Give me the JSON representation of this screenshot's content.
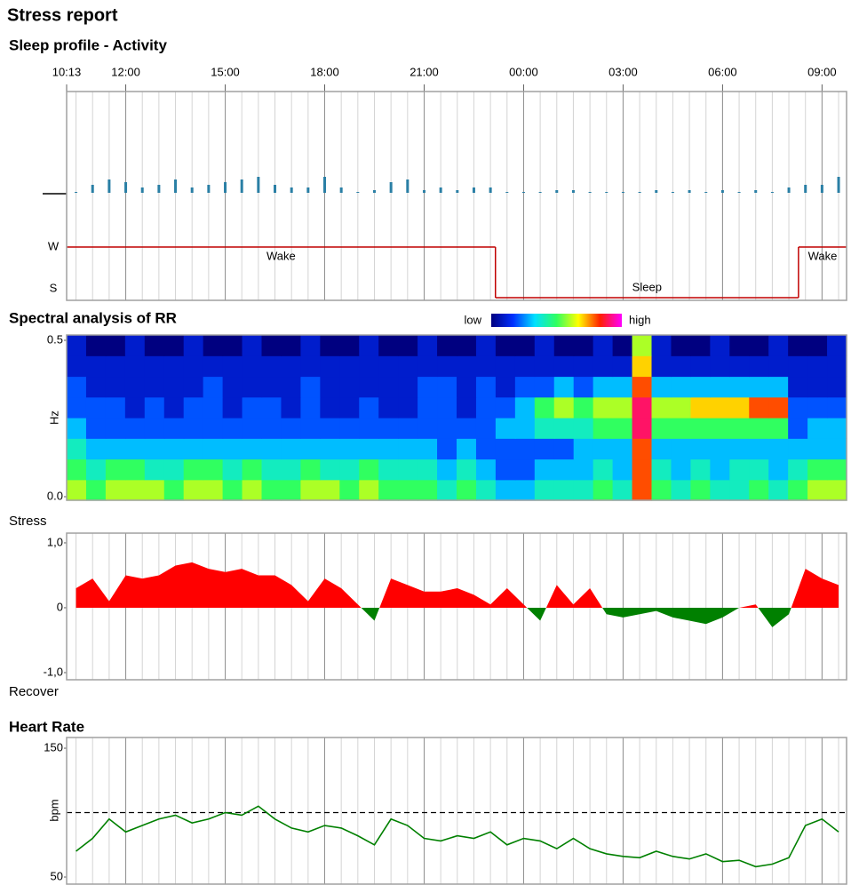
{
  "title": "Stress report",
  "chart_data": [
    {
      "type": "activity",
      "title": "Sleep profile - Activity",
      "xlim": [
        10.217,
        33.74
      ],
      "xticks": [
        {
          "value": 10.217,
          "label": "10:13"
        },
        {
          "value": 12,
          "label": "12:00"
        },
        {
          "value": 15,
          "label": "15:00"
        },
        {
          "value": 18,
          "label": "18:00"
        },
        {
          "value": 21,
          "label": "21:00"
        },
        {
          "value": 24,
          "label": "00:00"
        },
        {
          "value": 27,
          "label": "03:00"
        },
        {
          "value": 30,
          "label": "06:00"
        },
        {
          "value": 33,
          "label": "09:00"
        }
      ],
      "x": [
        10.5,
        11,
        11.5,
        12,
        12.5,
        13,
        13.5,
        14,
        14.5,
        15,
        15.5,
        16,
        16.5,
        17,
        17.5,
        18,
        18.5,
        19,
        19.5,
        20,
        20.5,
        21,
        21.5,
        22,
        22.5,
        23,
        23.5,
        24,
        24.5,
        25,
        25.5,
        26,
        26.5,
        27,
        27.5,
        28,
        28.5,
        29,
        29.5,
        30,
        30.5,
        31,
        31.5,
        32,
        32.5,
        33,
        33.5
      ],
      "values": [
        0,
        3,
        5,
        4,
        2,
        3,
        5,
        2,
        3,
        4,
        5,
        6,
        3,
        2,
        2,
        6,
        2,
        0,
        1,
        4,
        5,
        1,
        2,
        1,
        2,
        2,
        0,
        0,
        0,
        1,
        1,
        0,
        0,
        0,
        0,
        1,
        0,
        1,
        0,
        1,
        0,
        1,
        0,
        2,
        3,
        3,
        6
      ],
      "ylim": [
        0,
        10
      ],
      "color": "#2a7fa5",
      "hypnogram": {
        "levels": [
          "W",
          "S"
        ],
        "color": "#c00000",
        "segments": [
          {
            "label": "Wake",
            "start": 10.217,
            "end": 23.15,
            "level": 0
          },
          {
            "label": "Sleep",
            "start": 23.15,
            "end": 32.29,
            "level": 1
          },
          {
            "label": "Wake",
            "start": 32.29,
            "end": 33.74,
            "level": 0
          }
        ]
      }
    },
    {
      "type": "spectrogram",
      "title": "Spectral analysis of RR",
      "ylabel": "Hz",
      "xlim": [
        10.217,
        33.74
      ],
      "ylim": [
        0,
        0.5
      ],
      "yticks": [
        {
          "value": 0,
          "label": "0.0"
        },
        0.5
      ],
      "colorbar_labels": [
        "low",
        "high"
      ],
      "colormap": [
        "#000080",
        "#0030ff",
        "#00e0ff",
        "#30ff60",
        "#ffff00",
        "#ff2000",
        "#ff00ff"
      ],
      "z": [
        [
          0.6,
          0.5,
          0.6,
          0.6,
          0.6,
          0.5,
          0.6,
          0.6,
          0.5,
          0.6,
          0.5,
          0.5,
          0.6,
          0.6,
          0.5,
          0.6,
          0.5,
          0.5,
          0.5,
          0.4,
          0.5,
          0.4,
          0.3,
          0.3,
          0.4,
          0.4,
          0.4,
          0.5,
          0.4,
          0.8,
          0.5,
          0.4,
          0.5,
          0.4,
          0.4,
          0.5,
          0.4,
          0.5,
          0.6,
          0.6
        ],
        [
          0.5,
          0.4,
          0.5,
          0.5,
          0.4,
          0.4,
          0.5,
          0.5,
          0.4,
          0.5,
          0.4,
          0.4,
          0.5,
          0.4,
          0.4,
          0.5,
          0.4,
          0.4,
          0.4,
          0.3,
          0.4,
          0.3,
          0.2,
          0.2,
          0.3,
          0.3,
          0.3,
          0.4,
          0.3,
          0.8,
          0.4,
          0.3,
          0.4,
          0.3,
          0.4,
          0.4,
          0.3,
          0.4,
          0.5,
          0.5
        ],
        [
          0.4,
          0.3,
          0.3,
          0.3,
          0.3,
          0.3,
          0.3,
          0.3,
          0.3,
          0.3,
          0.3,
          0.3,
          0.3,
          0.3,
          0.3,
          0.3,
          0.3,
          0.3,
          0.3,
          0.2,
          0.3,
          0.2,
          0.2,
          0.2,
          0.2,
          0.2,
          0.3,
          0.3,
          0.3,
          0.8,
          0.3,
          0.3,
          0.3,
          0.3,
          0.3,
          0.3,
          0.3,
          0.3,
          0.3,
          0.3
        ],
        [
          0.3,
          0.2,
          0.2,
          0.2,
          0.2,
          0.2,
          0.2,
          0.2,
          0.2,
          0.2,
          0.2,
          0.2,
          0.2,
          0.2,
          0.2,
          0.2,
          0.2,
          0.2,
          0.2,
          0.2,
          0.2,
          0.2,
          0.3,
          0.3,
          0.4,
          0.4,
          0.4,
          0.5,
          0.5,
          0.9,
          0.5,
          0.5,
          0.5,
          0.5,
          0.5,
          0.5,
          0.5,
          0.2,
          0.3,
          0.3
        ],
        [
          0.2,
          0.2,
          0.2,
          0.1,
          0.2,
          0.1,
          0.2,
          0.2,
          0.1,
          0.2,
          0.2,
          0.1,
          0.2,
          0.1,
          0.1,
          0.2,
          0.1,
          0.1,
          0.2,
          0.2,
          0.1,
          0.2,
          0.2,
          0.3,
          0.5,
          0.6,
          0.5,
          0.6,
          0.6,
          0.9,
          0.6,
          0.6,
          0.7,
          0.7,
          0.7,
          0.8,
          0.8,
          0.2,
          0.2,
          0.2
        ],
        [
          0.2,
          0.1,
          0.1,
          0.1,
          0.1,
          0.1,
          0.1,
          0.2,
          0.1,
          0.1,
          0.1,
          0.1,
          0.2,
          0.1,
          0.1,
          0.1,
          0.1,
          0.1,
          0.2,
          0.2,
          0.1,
          0.2,
          0.1,
          0.2,
          0.2,
          0.3,
          0.2,
          0.3,
          0.3,
          0.8,
          0.3,
          0.3,
          0.3,
          0.3,
          0.3,
          0.3,
          0.3,
          0.1,
          0.1,
          0.1
        ],
        [
          0.1,
          0.1,
          0.1,
          0.1,
          0.1,
          0.1,
          0.1,
          0.1,
          0.1,
          0.1,
          0.1,
          0.1,
          0.1,
          0.1,
          0.1,
          0.1,
          0.1,
          0.1,
          0.1,
          0.1,
          0.1,
          0.1,
          0.1,
          0.1,
          0.1,
          0.1,
          0.1,
          0.1,
          0.1,
          0.7,
          0.1,
          0.1,
          0.1,
          0.1,
          0.1,
          0.1,
          0.1,
          0.1,
          0.1,
          0.1
        ],
        [
          0.1,
          0,
          0,
          0.1,
          0,
          0,
          0.1,
          0,
          0,
          0.1,
          0,
          0,
          0.1,
          0,
          0,
          0.1,
          0,
          0,
          0.1,
          0,
          0,
          0.1,
          0,
          0,
          0.1,
          0,
          0,
          0.1,
          0,
          0.6,
          0.1,
          0,
          0,
          0.1,
          0,
          0,
          0.1,
          0,
          0,
          0.1
        ]
      ]
    },
    {
      "type": "area",
      "title": "Stress",
      "bottom_label": "Recover",
      "xlim": [
        10.217,
        33.74
      ],
      "ylim": [
        -1.11,
        1.15
      ],
      "yticks": [
        {
          "value": 1,
          "label": "1,0"
        },
        0,
        {
          "value": -1,
          "label": "-1,0"
        }
      ],
      "positive_color": "#ff0000",
      "negative_color": "#008000",
      "x": [
        10.5,
        11,
        11.5,
        12,
        12.5,
        13,
        13.5,
        14,
        14.5,
        15,
        15.5,
        16,
        16.5,
        17,
        17.5,
        18,
        18.5,
        19,
        19.5,
        20,
        20.5,
        21,
        21.5,
        22,
        22.5,
        23,
        23.5,
        24,
        24.5,
        25,
        25.5,
        26,
        26.5,
        27,
        27.5,
        28,
        28.5,
        29,
        29.5,
        30,
        30.5,
        31,
        31.5,
        32,
        32.5,
        33,
        33.5
      ],
      "values": [
        0.3,
        0.45,
        0.1,
        0.5,
        0.45,
        0.5,
        0.65,
        0.7,
        0.6,
        0.55,
        0.6,
        0.5,
        0.5,
        0.35,
        0.1,
        0.45,
        0.3,
        0.05,
        -0.2,
        0.45,
        0.35,
        0.25,
        0.25,
        0.3,
        0.2,
        0.05,
        0.3,
        0.05,
        -0.2,
        0.35,
        0.05,
        0.3,
        -0.1,
        -0.15,
        -0.1,
        -0.05,
        -0.15,
        -0.2,
        -0.25,
        -0.15,
        0,
        0.05,
        -0.3,
        -0.1,
        0.6,
        0.45,
        0.35
      ]
    },
    {
      "type": "line",
      "title": "Heart Rate",
      "ylabel": "bpm",
      "xlim": [
        10.217,
        33.74
      ],
      "ylim": [
        44.5,
        158.3
      ],
      "yticks": [
        50,
        150
      ],
      "reference": 100,
      "color": "#008000",
      "x": [
        10.5,
        11,
        11.5,
        12,
        12.5,
        13,
        13.5,
        14,
        14.5,
        15,
        15.5,
        16,
        16.5,
        17,
        17.5,
        18,
        18.5,
        19,
        19.5,
        20,
        20.5,
        21,
        21.5,
        22,
        22.5,
        23,
        23.5,
        24,
        24.5,
        25,
        25.5,
        26,
        26.5,
        27,
        27.5,
        28,
        28.5,
        29,
        29.5,
        30,
        30.5,
        31,
        31.5,
        32,
        32.5,
        33,
        33.5
      ],
      "values": [
        70,
        80,
        95,
        85,
        90,
        95,
        98,
        92,
        95,
        100,
        98,
        105,
        95,
        88,
        85,
        90,
        88,
        82,
        75,
        95,
        90,
        80,
        78,
        82,
        80,
        85,
        75,
        80,
        78,
        72,
        80,
        72,
        68,
        66,
        65,
        70,
        66,
        64,
        68,
        62,
        63,
        58,
        60,
        65,
        90,
        95,
        85
      ]
    }
  ]
}
